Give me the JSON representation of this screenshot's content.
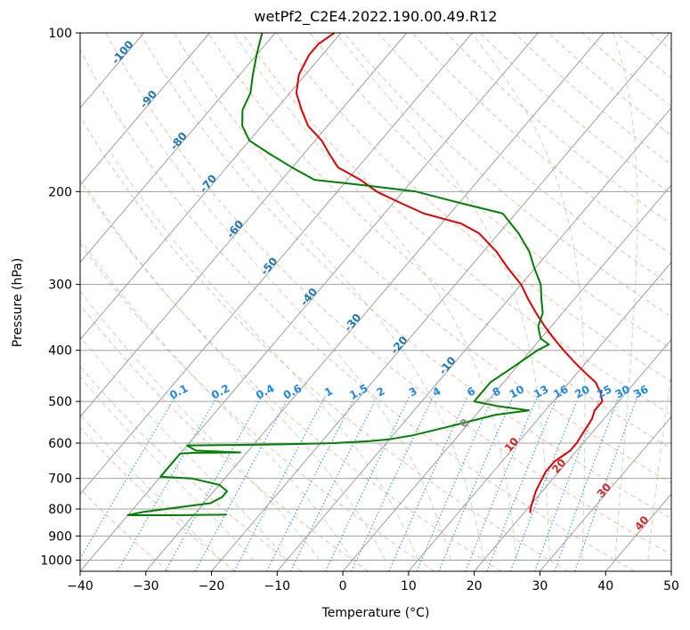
{
  "chart_data": {
    "type": "line",
    "chart_kind": "skew-t log-p",
    "title": "wetPf2_C2E4.2022.190.00.49.R12",
    "xlabel": "Temperature (°C)",
    "ylabel": "Pressure (hPa)",
    "xlim": [
      -40,
      50
    ],
    "ylim": [
      1050,
      100
    ],
    "y_scale": "log",
    "x_ticks": [
      "−40",
      "−30",
      "−20",
      "−10",
      "0",
      "10",
      "20",
      "30",
      "40",
      "50"
    ],
    "y_ticks": [
      "100",
      "200",
      "300",
      "400",
      "500",
      "600",
      "700",
      "800",
      "900",
      "1000"
    ],
    "series": [
      {
        "color": "#e00000",
        "points": [
          [
            21,
            814
          ],
          [
            20.5,
            800
          ],
          [
            20,
            780
          ],
          [
            19.5,
            760
          ],
          [
            19,
            740
          ],
          [
            18.5,
            710
          ],
          [
            18,
            680
          ],
          [
            18,
            650
          ],
          [
            19,
            620
          ],
          [
            19,
            600
          ],
          [
            18.6,
            570
          ],
          [
            18.2,
            540
          ],
          [
            17.5,
            520
          ],
          [
            17.5,
            500
          ],
          [
            16,
            480
          ],
          [
            14,
            460
          ],
          [
            11,
            440
          ],
          [
            8,
            420
          ],
          [
            5,
            400
          ],
          [
            2,
            380
          ],
          [
            -1,
            360
          ],
          [
            -4,
            340
          ],
          [
            -7,
            320
          ],
          [
            -10,
            300
          ],
          [
            -14,
            280
          ],
          [
            -18,
            260
          ],
          [
            -23,
            240
          ],
          [
            -27,
            230
          ],
          [
            -34,
            220
          ],
          [
            -39,
            210
          ],
          [
            -44,
            200
          ],
          [
            -48,
            190
          ],
          [
            -53,
            180
          ],
          [
            -56,
            170
          ],
          [
            -59,
            160
          ],
          [
            -63,
            150
          ],
          [
            -66,
            140
          ],
          [
            -69,
            130
          ],
          [
            -71,
            120
          ],
          [
            -72,
            110
          ],
          [
            -72,
            105
          ],
          [
            -71,
            100
          ]
        ]
      },
      {
        "color": "#008000",
        "points": [
          [
            -25,
            820
          ],
          [
            -33,
            822
          ],
          [
            -40,
            822
          ],
          [
            -38,
            810
          ],
          [
            -35,
            800
          ],
          [
            -32,
            790
          ],
          [
            -29,
            780
          ],
          [
            -28,
            760
          ],
          [
            -28,
            740
          ],
          [
            -30,
            720
          ],
          [
            -35,
            700
          ],
          [
            -40,
            695
          ],
          [
            -40,
            628
          ],
          [
            -38,
            626
          ],
          [
            -31,
            625
          ],
          [
            -38,
            620
          ],
          [
            -40,
            606
          ],
          [
            -33,
            605
          ],
          [
            -25,
            603
          ],
          [
            -18,
            600
          ],
          [
            -13,
            595
          ],
          [
            -10,
            590
          ],
          [
            -7,
            580
          ],
          [
            -5,
            570
          ],
          [
            -3,
            560
          ],
          [
            -1,
            550
          ],
          [
            1,
            540
          ],
          [
            3,
            530
          ],
          [
            7.5,
            520
          ],
          [
            2,
            510
          ],
          [
            -2,
            500
          ],
          [
            -2,
            490
          ],
          [
            -2,
            480
          ],
          [
            -2,
            460
          ],
          [
            -1,
            440
          ],
          [
            0,
            420
          ],
          [
            1,
            400
          ],
          [
            2,
            390
          ],
          [
            0,
            380
          ],
          [
            -1,
            370
          ],
          [
            -2,
            360
          ],
          [
            -3,
            340
          ],
          [
            -5,
            320
          ],
          [
            -7,
            300
          ],
          [
            -10,
            280
          ],
          [
            -13,
            260
          ],
          [
            -17,
            240
          ],
          [
            -22,
            220
          ],
          [
            -30,
            210
          ],
          [
            -38,
            200
          ],
          [
            -46,
            195
          ],
          [
            -55,
            190
          ],
          [
            -60,
            180
          ],
          [
            -65,
            170
          ],
          [
            -70,
            160
          ],
          [
            -73,
            150
          ],
          [
            -75,
            140
          ],
          [
            -76,
            130
          ],
          [
            -78,
            120
          ],
          [
            -80,
            110
          ],
          [
            -82,
            100
          ]
        ]
      }
    ],
    "isotherm_labels": [
      "-100",
      "-90",
      "-80",
      "-70",
      "-60",
      "-50",
      "-40",
      "-30",
      "-20",
      "-10",
      "0",
      "10",
      "20",
      "30",
      "40"
    ],
    "mixing_ratio_labels": [
      "0.1",
      "0.2",
      "0.4",
      "0.6",
      "1",
      "1.5",
      "2",
      "3",
      "4",
      "6",
      "8",
      "10",
      "13",
      "16",
      "20",
      "25",
      "30",
      "36"
    ],
    "background_guides": {
      "dry_adiabats": "dashed salmon",
      "moist_adiabats": "dashed light green",
      "mixing_ratio_lines": "dotted blue",
      "isotherms": "solid gray",
      "isobars": "solid gray"
    },
    "colors": {
      "temperature": "#e00000",
      "dewpoint": "#008000",
      "isotherm_label_cold": "#1f77b4",
      "isotherm_label_warm": "#d62728",
      "mixing_ratio": "#1e88e5"
    }
  }
}
